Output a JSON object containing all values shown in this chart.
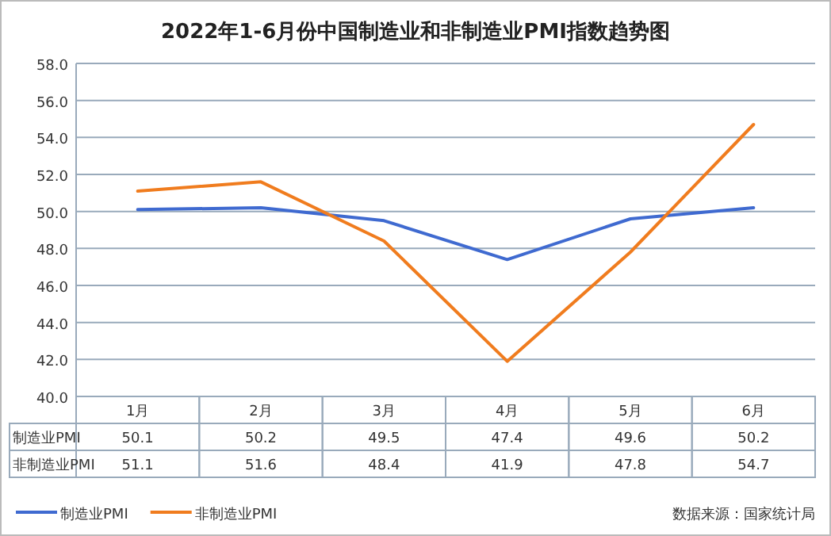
{
  "chart_data": {
    "type": "line",
    "title": "2022年1-6月份中国制造业和非制造业PMI指数趋势图",
    "categories": [
      "1月",
      "2月",
      "3月",
      "4月",
      "5月",
      "6月"
    ],
    "series": [
      {
        "name": "制造业PMI",
        "color": "#3f6ad0",
        "values": [
          50.1,
          50.2,
          49.5,
          47.4,
          49.6,
          50.2
        ]
      },
      {
        "name": "非制造业PMI",
        "color": "#f07c1e",
        "values": [
          51.1,
          51.6,
          48.4,
          41.9,
          47.8,
          54.7
        ]
      }
    ],
    "ylim": [
      40,
      58
    ],
    "yticks": [
      {
        "value": 40,
        "label": "40.0"
      },
      {
        "value": 42,
        "label": "42.0"
      },
      {
        "value": 44,
        "label": "44.0"
      },
      {
        "value": 46,
        "label": "46.0"
      },
      {
        "value": 48,
        "label": "48.0"
      },
      {
        "value": 50,
        "label": "50.0"
      },
      {
        "value": 52,
        "label": "52.0"
      },
      {
        "value": 54,
        "label": "54.0"
      },
      {
        "value": 56,
        "label": "56.0"
      },
      {
        "value": 58,
        "label": "58.0"
      }
    ],
    "grid": "y",
    "legend": "bottom left",
    "data_labels": true,
    "marker": "none",
    "line_style": "solid",
    "annotations": [
      "数据来源：国家统计局"
    ]
  }
}
